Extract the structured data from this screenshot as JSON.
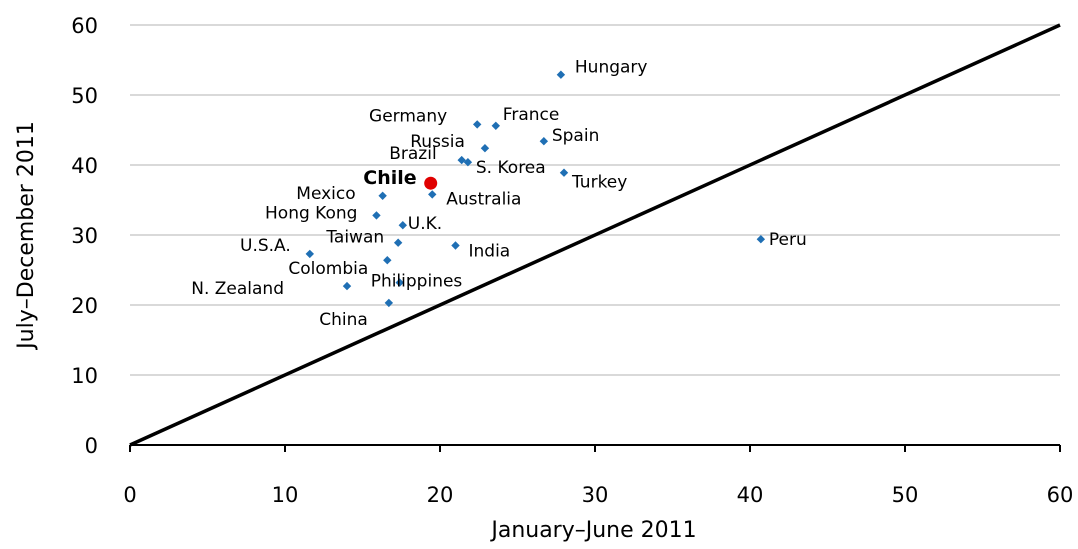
{
  "chart_data": {
    "type": "scatter",
    "xlabel": "January–June 2011",
    "ylabel": "July–December 2011",
    "xlim": [
      0,
      60
    ],
    "ylim": [
      0,
      60
    ],
    "xticks": [
      "0",
      "10",
      "20",
      "30",
      "40",
      "50",
      "60"
    ],
    "yticks": [
      "0",
      "10",
      "20",
      "30",
      "40",
      "50",
      "60"
    ],
    "grid": "horizontal",
    "reference_line": {
      "from": [
        0,
        0
      ],
      "to": [
        60,
        60
      ]
    },
    "colors": {
      "points": "#1f6fb4",
      "highlight": "#e00000",
      "line": "#000000",
      "grid": "#d9d9d9"
    },
    "points": [
      {
        "label": "Hungary",
        "x": 27.8,
        "y": 52.9
      },
      {
        "label": "France",
        "x": 23.6,
        "y": 45.6
      },
      {
        "label": "Germany",
        "x": 22.4,
        "y": 45.8
      },
      {
        "label": "Spain",
        "x": 26.7,
        "y": 43.4
      },
      {
        "label": "Russia",
        "x": 22.9,
        "y": 42.4
      },
      {
        "label": "Brazil",
        "x": 21.4,
        "y": 40.7
      },
      {
        "label": "S. Korea",
        "x": 21.8,
        "y": 40.4
      },
      {
        "label": "Turkey",
        "x": 28.0,
        "y": 38.9
      },
      {
        "label": "Chile",
        "x": 19.4,
        "y": 37.4,
        "highlight": true
      },
      {
        "label": "Australia",
        "x": 19.5,
        "y": 35.8
      },
      {
        "label": "Mexico",
        "x": 16.3,
        "y": 35.6
      },
      {
        "label": "Hong Kong",
        "x": 15.9,
        "y": 32.8
      },
      {
        "label": "U.K.",
        "x": 17.6,
        "y": 31.4
      },
      {
        "label": "Taiwan",
        "x": 17.3,
        "y": 28.9
      },
      {
        "label": "India",
        "x": 21.0,
        "y": 28.5
      },
      {
        "label": "U.S.A.",
        "x": 11.6,
        "y": 27.3
      },
      {
        "label": "Peru",
        "x": 40.7,
        "y": 29.4
      },
      {
        "label": "Colombia",
        "x": 16.6,
        "y": 26.4
      },
      {
        "label": "Philippines",
        "x": 17.4,
        "y": 23.2
      },
      {
        "label": "N. Zealand",
        "x": 14.0,
        "y": 22.7
      },
      {
        "label": "China",
        "x": 16.7,
        "y": 20.3
      }
    ]
  }
}
